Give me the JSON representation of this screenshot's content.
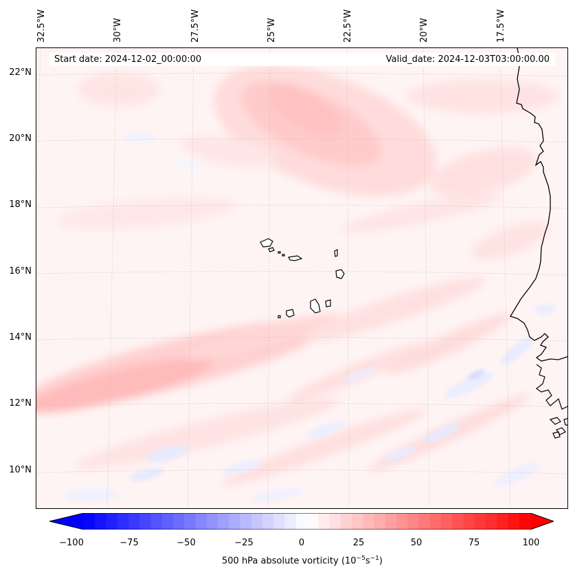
{
  "map": {
    "projection": "lambert-conformal",
    "region": "Eastern tropical Atlantic / Cabo Verde",
    "start_label": "Start date: 2024-12-02_00:00:00",
    "valid_label": "Valid_date: 2024-12-03T03:00:00.00",
    "longitude_labels": [
      "32.5°W",
      "30°W",
      "27.5°W",
      "25°W",
      "22.5°W",
      "20°W",
      "17.5°W"
    ],
    "latitude_labels": [
      "22°N",
      "20°N",
      "18°N",
      "16°N",
      "14°N",
      "12°N",
      "10°N"
    ]
  },
  "colorbar": {
    "label_prefix": "500 hPa absolute vorticity (10",
    "label_exp1": "−5",
    "label_mid": "s",
    "label_exp2": "−1",
    "label_suffix": ")",
    "ticks": [
      "−100",
      "−75",
      "−50",
      "−25",
      "0",
      "25",
      "50",
      "75",
      "100"
    ],
    "min": -100,
    "max": 100,
    "colors": {
      "low": "#0000ff",
      "mid": "#ffffff",
      "high": "#ff0000"
    }
  }
}
